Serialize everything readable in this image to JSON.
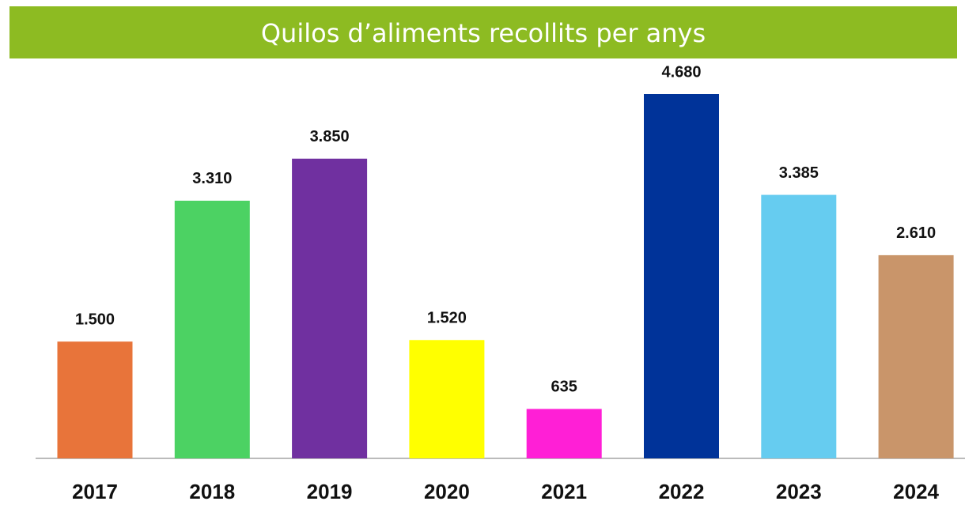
{
  "chart_data": {
    "type": "bar",
    "title": "Quilos d’aliments recollits per anys",
    "categories": [
      "2017",
      "2018",
      "2019",
      "2020",
      "2021",
      "2022",
      "2023",
      "2024"
    ],
    "values": [
      1500,
      3310,
      3850,
      1520,
      635,
      4680,
      3385,
      2610
    ],
    "value_labels": [
      "1.500",
      "3.310",
      "3.850",
      "1.520",
      "635",
      "4.680",
      "3.385",
      "2.610"
    ],
    "colors": [
      "#e8743a",
      "#4cd263",
      "#7030a0",
      "#ffff00",
      "#ff1fd6",
      "#003399",
      "#66ccf0",
      "#c9956a"
    ]
  }
}
